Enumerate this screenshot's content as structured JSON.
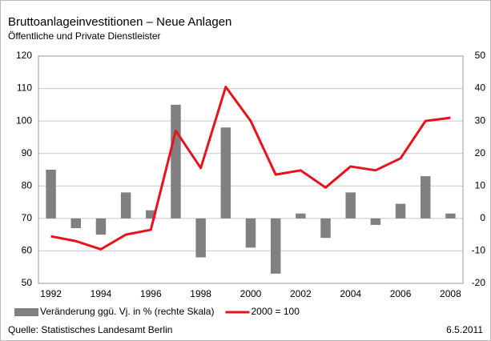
{
  "chart_data": {
    "type": "bar_line",
    "title": "Bruttoanlageinvestitionen – Neue Anlagen",
    "subtitle": "Öffentliche und Private Dienstleister",
    "categories": [
      "1992",
      null,
      "1994",
      null,
      "1996",
      null,
      "1998",
      null,
      "2000",
      null,
      "2002",
      null,
      "2004",
      null,
      "2006",
      null,
      "2008"
    ],
    "series": [
      {
        "name": "Veränderung ggü. Vj. in % (rechte Skala)",
        "color": "#808080",
        "kind": "bar",
        "axis": "y2",
        "values": [
          15,
          -3,
          -5,
          8,
          2.5,
          35,
          -12,
          28,
          -9,
          -17,
          1.5,
          -6,
          8,
          -2,
          4.5,
          13,
          1.5
        ]
      },
      {
        "name": "2000 = 100",
        "color": "#e8121b",
        "kind": "line",
        "values": [
          64.5,
          63,
          60.5,
          65,
          66.5,
          97,
          85.5,
          110.5,
          100,
          83.5,
          84.8,
          79.5,
          86,
          84.8,
          88.5,
          100,
          101
        ]
      }
    ],
    "ylim": [
      50,
      120
    ],
    "yticks": [
      50,
      60,
      70,
      80,
      90,
      100,
      110,
      120
    ],
    "y2lim": [
      -20,
      50
    ],
    "y2ticks": [
      -20,
      -10,
      0,
      10,
      20,
      30,
      40,
      50
    ],
    "grid": true,
    "source": "Quelle: Statistisches Landesamt Berlin",
    "date": "6.5.2011"
  }
}
